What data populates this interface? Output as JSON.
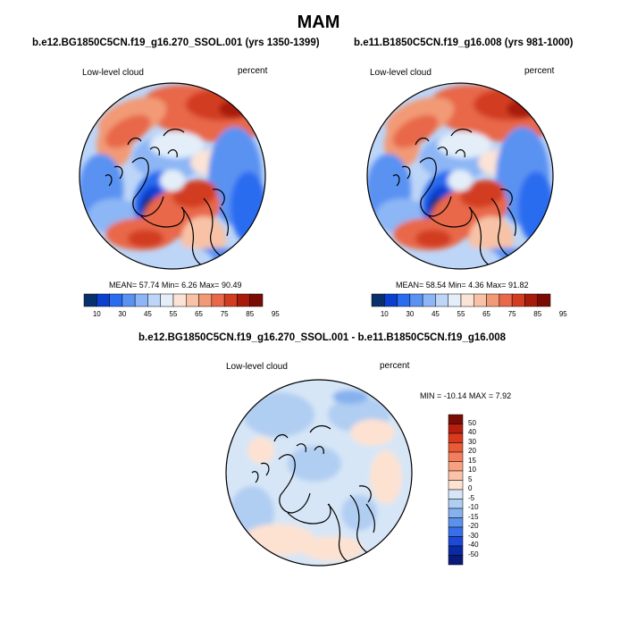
{
  "page": {
    "title": "MAM"
  },
  "palette": {
    "abs_colors": [
      "#08306b",
      "#0b3fd0",
      "#2a6cf0",
      "#5a92f2",
      "#8cb6f5",
      "#bdd5f7",
      "#e3eef9",
      "#fbe3d6",
      "#f7c2a6",
      "#f29a76",
      "#e8684a",
      "#d23d22",
      "#a81b0c",
      "#7a0c06"
    ],
    "diff_colors": [
      "#7a0c06",
      "#b81e0e",
      "#d93a1e",
      "#ea5a37",
      "#f37e5b",
      "#f7a180",
      "#fac3a7",
      "#fde2d2",
      "#d6e6f7",
      "#b0cdf2",
      "#86b1ee",
      "#5c92ec",
      "#386fe8",
      "#1d49d6",
      "#0a2aa5",
      "#0a1a7a"
    ],
    "ocean": "#ffffff",
    "coast": "#000000"
  },
  "chart_data": [
    {
      "type": "polar-contour-map",
      "projection": "north-polar-stereographic",
      "title": "b.e12.BG1850C5CN.f19_g16.270_SSOL.001 (yrs 1350-1399)",
      "left_label": "Low-level cloud",
      "right_label": "percent",
      "stats": {
        "mean_label": "MEAN=",
        "mean": "57.74",
        "min_label": "Min=",
        "min": "6.26",
        "max_label": "Max=",
        "max": "90.49"
      },
      "colorbar": {
        "orientation": "horizontal",
        "tick_labels": [
          "10",
          "30",
          "45",
          "55",
          "65",
          "75",
          "85",
          "95"
        ]
      }
    },
    {
      "type": "polar-contour-map",
      "projection": "north-polar-stereographic",
      "title": "b.e11.B1850C5CN.f19_g16.008 (yrs 981-1000)",
      "left_label": "Low-level cloud",
      "right_label": "percent",
      "stats": {
        "mean_label": "MEAN=",
        "mean": "58.54",
        "min_label": "Min=",
        "min": "4.36",
        "max_label": "Max=",
        "max": "91.82"
      },
      "colorbar": {
        "orientation": "horizontal",
        "tick_labels": [
          "10",
          "30",
          "45",
          "55",
          "65",
          "75",
          "85",
          "95"
        ]
      }
    },
    {
      "type": "polar-contour-map",
      "projection": "north-polar-stereographic",
      "title": "b.e12.BG1850C5CN.f19_g16.270_SSOL.001 - b.e11.B1850C5CN.f19_g16.008",
      "left_label": "Low-level cloud",
      "right_label": "percent",
      "stats": {
        "min_label": "MIN =",
        "min": "-10.14",
        "max_label": "MAX =",
        "max": "7.92"
      },
      "colorbar": {
        "orientation": "vertical",
        "tick_labels": [
          "50",
          "40",
          "30",
          "20",
          "15",
          "10",
          "5",
          "0",
          "-5",
          "-10",
          "-15",
          "-20",
          "-30",
          "-40",
          "-50"
        ]
      }
    }
  ]
}
